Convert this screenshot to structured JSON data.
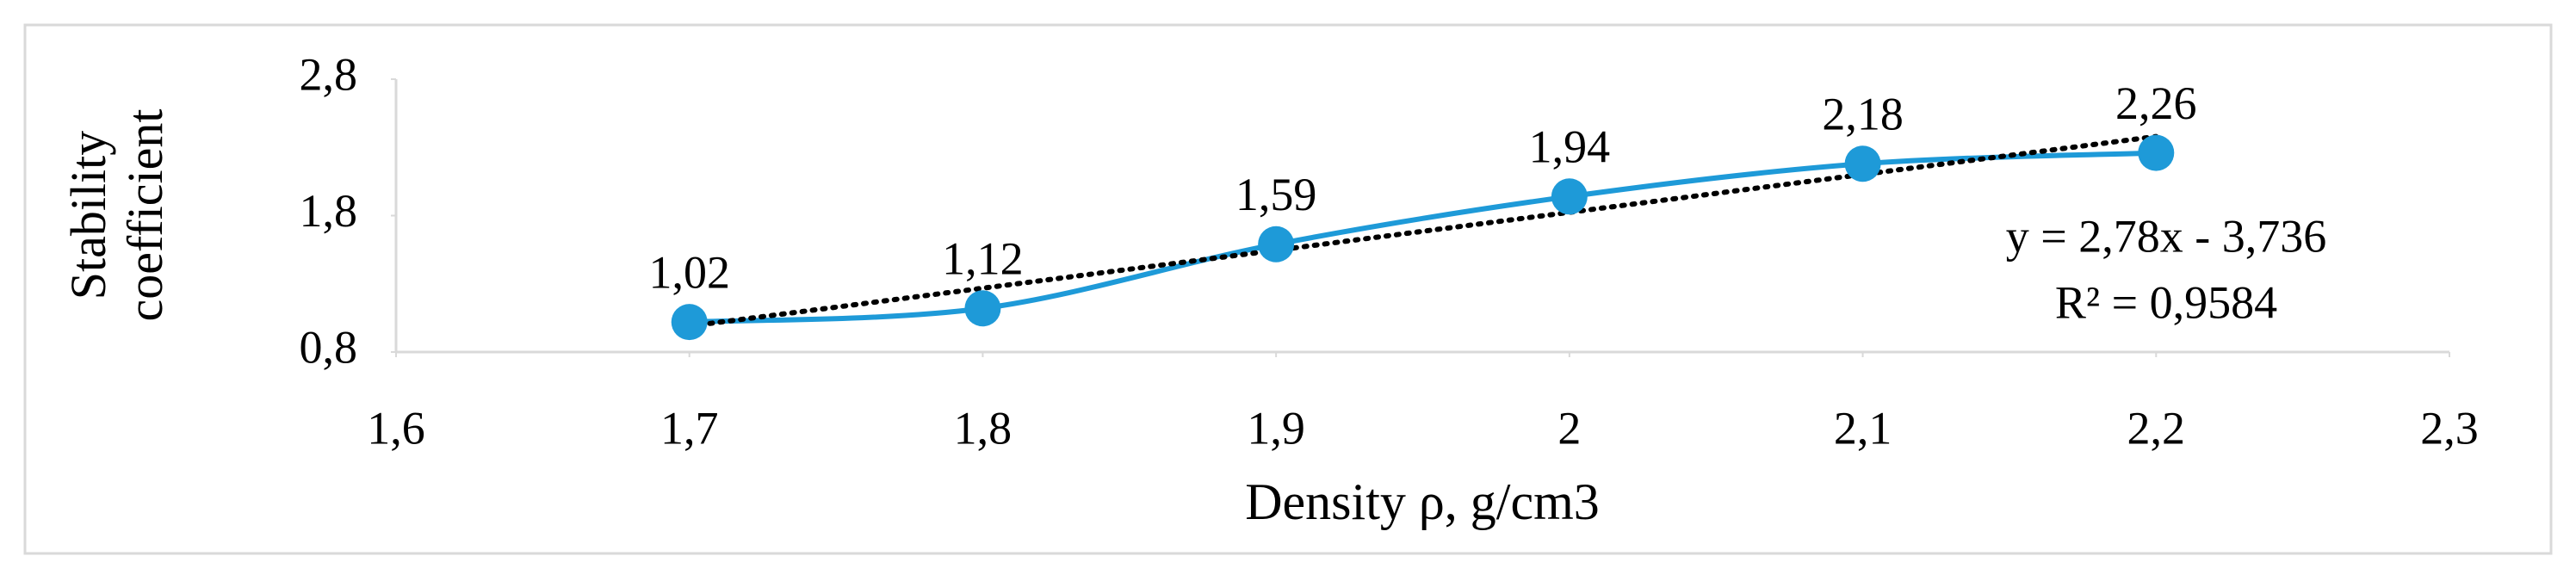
{
  "chart_data": {
    "type": "scatter",
    "x_label": "Density ρ, g/cm3",
    "y_label": "Stability coefficient",
    "x": [
      1.7,
      1.8,
      1.9,
      2,
      2.1,
      2.2
    ],
    "series": [
      {
        "name": "Stability coefficient",
        "color": "#1e9ad8",
        "values": [
          1.02,
          1.12,
          1.59,
          1.94,
          2.18,
          2.26
        ],
        "value_labels": [
          "1,02",
          "1,12",
          "1,59",
          "1,94",
          "2,18",
          "2,26"
        ]
      }
    ],
    "trendline": {
      "slope": 2.78,
      "intercept": -3.736,
      "color": "#000000",
      "equation": "y = 2,78x - 3,736",
      "r_squared": "R² = 0,9584"
    },
    "xlim": [
      1.6,
      2.3
    ],
    "xticks": [
      {
        "value": 1.6,
        "label": "1,6"
      },
      {
        "value": 1.7,
        "label": "1,7"
      },
      {
        "value": 1.8,
        "label": "1,8"
      },
      {
        "value": 1.9,
        "label": "1,9"
      },
      2,
      {
        "value": 2.1,
        "label": "2,1"
      },
      {
        "value": 2.2,
        "label": "2,2"
      },
      {
        "value": 2.3,
        "label": "2,3"
      }
    ],
    "ylim": [
      0.8,
      2.8
    ],
    "yticks": [
      {
        "value": 0.8,
        "label": "0,8"
      },
      {
        "value": 1.8,
        "label": "1,8"
      },
      {
        "value": 2.8,
        "label": "2,8"
      }
    ],
    "grid": false
  }
}
